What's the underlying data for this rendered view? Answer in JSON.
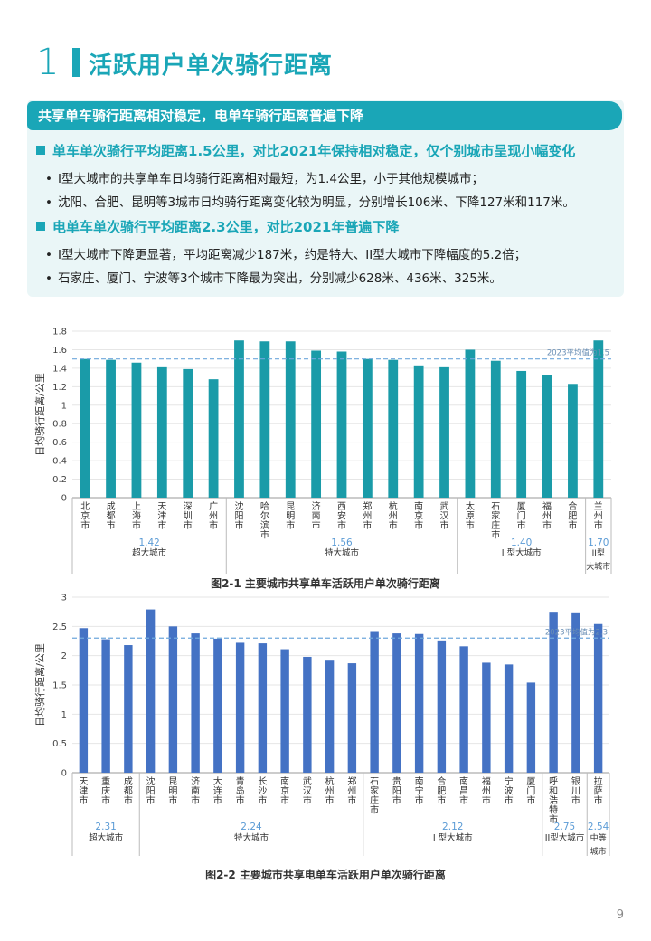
{
  "section": {
    "number": "1",
    "title": "活跃用户单次骑行距离"
  },
  "summary": {
    "header": "共享单车骑行距离相对稳定，电单车骑行距离普遍下降",
    "blocks": [
      {
        "heading": "单车单次骑行平均距离1.5公里，对比2021年保持相对稳定，仅个别城市呈现小幅变化",
        "bullets": [
          "I型大城市的共享单车日均骑行距离相对最短，为1.4公里，小于其他规模城市；",
          "沈阳、合肥、昆明等3城市日均骑行距离变化较为明显，分别增长106米、下降127米和117米。"
        ]
      },
      {
        "heading": "电单车单次骑行平均距离2.3公里，对比2021年普遍下降",
        "bullets": [
          "I型大城市下降更显著，平均距离减少187米，约是特大、II型大城市下降幅度的5.2倍；",
          "石家庄、厦门、宁波等3个城市下降最为突出，分别减少628米、436米、325米。"
        ]
      }
    ]
  },
  "chart_data": [
    {
      "type": "bar",
      "title": "图2-1 主要城市共享单车活跃用户单次骑行距离",
      "ylabel": "日均骑行距离/公里",
      "ylim": [
        0,
        1.8
      ],
      "yticks": [
        "0",
        "0.2",
        "0.4",
        "0.6",
        "0.8",
        "1",
        "1.2",
        "1.4",
        "1.6",
        "1.8"
      ],
      "color": "#1a9ba8",
      "categories": [
        "北京市",
        "成都市",
        "上海市",
        "天津市",
        "深圳市",
        "广州市",
        "沈阳市",
        "哈尔滨市",
        "昆明市",
        "济南市",
        "西安市",
        "郑州市",
        "杭州市",
        "南京市",
        "武汉市",
        "太原市",
        "石家庄市",
        "厦门市",
        "福州市",
        "合肥市",
        "兰州市"
      ],
      "values": [
        1.5,
        1.49,
        1.46,
        1.41,
        1.39,
        1.28,
        1.7,
        1.69,
        1.69,
        1.59,
        1.58,
        1.5,
        1.49,
        1.43,
        1.41,
        1.6,
        1.48,
        1.37,
        1.33,
        1.23,
        1.7
      ],
      "reference": {
        "value": 1.5,
        "label": "2023平均值为1.5"
      },
      "groups": [
        {
          "avg": "1.42",
          "name": "超大城市",
          "start": 0,
          "end": 5
        },
        {
          "avg": "1.56",
          "name": "特大城市",
          "start": 6,
          "end": 14
        },
        {
          "avg": "1.40",
          "name": "I 型大城市",
          "start": 15,
          "end": 19
        },
        {
          "avg": "1.70",
          "name": "II型大城市",
          "start": 20,
          "end": 20
        }
      ]
    },
    {
      "type": "bar",
      "title": "图2-2 主要城市共享电单车活跃用户单次骑行距离",
      "ylabel": "日均骑行距离/公里",
      "ylim": [
        0,
        3
      ],
      "yticks": [
        "0",
        "0.5",
        "1",
        "1.5",
        "2",
        "2.5",
        "3"
      ],
      "color": "#4472c4",
      "categories": [
        "天津市",
        "重庆市",
        "成都市",
        "沈阳市",
        "昆明市",
        "济南市",
        "大连市",
        "青岛市",
        "长沙市",
        "南京市",
        "武汉市",
        "杭州市",
        "郑州市",
        "石家庄市",
        "贵阳市",
        "南宁市",
        "合肥市",
        "南昌市",
        "福州市",
        "宁波市",
        "厦门市",
        "呼和浩特市",
        "银川市",
        "拉萨市"
      ],
      "values": [
        2.47,
        2.28,
        2.18,
        2.79,
        2.5,
        2.38,
        2.29,
        2.22,
        2.21,
        2.11,
        1.98,
        1.93,
        1.87,
        2.42,
        2.38,
        2.37,
        2.26,
        2.16,
        1.88,
        1.85,
        1.54,
        2.75,
        2.74,
        2.54
      ],
      "reference": {
        "value": 2.3,
        "label": "2023平均值为2.3"
      },
      "groups": [
        {
          "avg": "2.31",
          "name": "超大城市",
          "start": 0,
          "end": 2
        },
        {
          "avg": "2.24",
          "name": "特大城市",
          "start": 3,
          "end": 12
        },
        {
          "avg": "2.12",
          "name": "I 型大城市",
          "start": 13,
          "end": 20
        },
        {
          "avg": "2.75",
          "name": "II型大城市",
          "start": 21,
          "end": 22
        },
        {
          "avg": "2.54",
          "name": "中等城市",
          "start": 23,
          "end": 23
        }
      ]
    }
  ],
  "page_number": "9"
}
